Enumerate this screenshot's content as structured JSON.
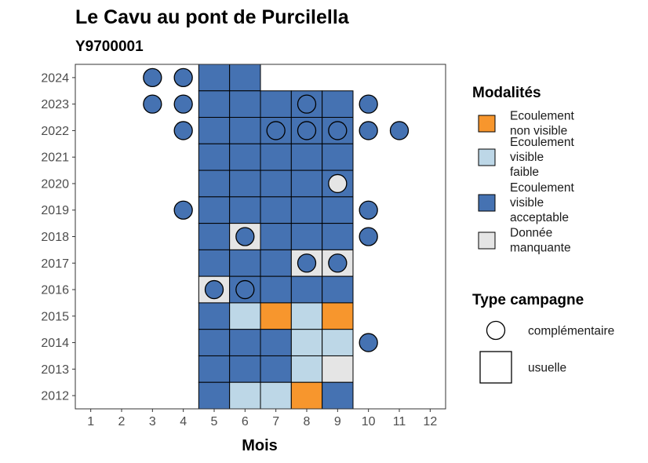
{
  "chart_data": {
    "type": "heatmap",
    "title": "Le Cavu au pont de Purcilella",
    "subtitle": "Y9700001",
    "xlabel": "Mois",
    "ylabel": "",
    "x_ticks": [
      1,
      2,
      3,
      4,
      5,
      6,
      7,
      8,
      9,
      10,
      11,
      12
    ],
    "y_ticks": [
      2012,
      2013,
      2014,
      2015,
      2016,
      2017,
      2018,
      2019,
      2020,
      2021,
      2022,
      2023,
      2024
    ],
    "xlim": [
      0.5,
      12.5
    ],
    "ylim": [
      2011.5,
      2024.5
    ],
    "grid": false,
    "legend_position": "right",
    "modalites": {
      "title": "Modalités",
      "entries": [
        {
          "key": "nv",
          "label_lines": [
            "Ecoulement",
            "non visible"
          ],
          "color": "#f7962d"
        },
        {
          "key": "vf",
          "label_lines": [
            "Ecoulement",
            "visible",
            "faible"
          ],
          "color": "#bdd7e7"
        },
        {
          "key": "va",
          "label_lines": [
            "Ecoulement",
            "visible",
            "acceptable"
          ],
          "color": "#4572b2"
        },
        {
          "key": "dm",
          "label_lines": [
            "Donnée",
            "manquante"
          ],
          "color": "#e5e5e5"
        }
      ]
    },
    "type_campagne": {
      "title": "Type campagne",
      "entries": [
        {
          "key": "complementaire",
          "label": "complémentaire",
          "shape": "circle"
        },
        {
          "key": "usuelle",
          "label": "usuelle",
          "shape": "square"
        }
      ]
    },
    "usuelle": [
      {
        "year": 2024,
        "month": 5,
        "m": "va"
      },
      {
        "year": 2024,
        "month": 6,
        "m": "va"
      },
      {
        "year": 2023,
        "month": 5,
        "m": "va"
      },
      {
        "year": 2023,
        "month": 6,
        "m": "va"
      },
      {
        "year": 2023,
        "month": 7,
        "m": "va"
      },
      {
        "year": 2023,
        "month": 8,
        "m": "va"
      },
      {
        "year": 2023,
        "month": 9,
        "m": "va"
      },
      {
        "year": 2022,
        "month": 5,
        "m": "va"
      },
      {
        "year": 2022,
        "month": 6,
        "m": "va"
      },
      {
        "year": 2022,
        "month": 7,
        "m": "va"
      },
      {
        "year": 2022,
        "month": 8,
        "m": "va"
      },
      {
        "year": 2022,
        "month": 9,
        "m": "va"
      },
      {
        "year": 2021,
        "month": 5,
        "m": "va"
      },
      {
        "year": 2021,
        "month": 6,
        "m": "va"
      },
      {
        "year": 2021,
        "month": 7,
        "m": "va"
      },
      {
        "year": 2021,
        "month": 8,
        "m": "va"
      },
      {
        "year": 2021,
        "month": 9,
        "m": "va"
      },
      {
        "year": 2020,
        "month": 5,
        "m": "va"
      },
      {
        "year": 2020,
        "month": 6,
        "m": "va"
      },
      {
        "year": 2020,
        "month": 7,
        "m": "va"
      },
      {
        "year": 2020,
        "month": 8,
        "m": "va"
      },
      {
        "year": 2020,
        "month": 9,
        "m": "va"
      },
      {
        "year": 2019,
        "month": 5,
        "m": "va"
      },
      {
        "year": 2019,
        "month": 6,
        "m": "va"
      },
      {
        "year": 2019,
        "month": 7,
        "m": "va"
      },
      {
        "year": 2019,
        "month": 8,
        "m": "va"
      },
      {
        "year": 2019,
        "month": 9,
        "m": "va"
      },
      {
        "year": 2018,
        "month": 5,
        "m": "va"
      },
      {
        "year": 2018,
        "month": 6,
        "m": "dm"
      },
      {
        "year": 2018,
        "month": 7,
        "m": "va"
      },
      {
        "year": 2018,
        "month": 8,
        "m": "va"
      },
      {
        "year": 2018,
        "month": 9,
        "m": "va"
      },
      {
        "year": 2017,
        "month": 5,
        "m": "va"
      },
      {
        "year": 2017,
        "month": 6,
        "m": "va"
      },
      {
        "year": 2017,
        "month": 7,
        "m": "va"
      },
      {
        "year": 2017,
        "month": 8,
        "m": "dm"
      },
      {
        "year": 2017,
        "month": 9,
        "m": "dm"
      },
      {
        "year": 2016,
        "month": 5,
        "m": "dm"
      },
      {
        "year": 2016,
        "month": 6,
        "m": "va"
      },
      {
        "year": 2016,
        "month": 7,
        "m": "va"
      },
      {
        "year": 2016,
        "month": 8,
        "m": "va"
      },
      {
        "year": 2016,
        "month": 9,
        "m": "va"
      },
      {
        "year": 2015,
        "month": 5,
        "m": "va"
      },
      {
        "year": 2015,
        "month": 6,
        "m": "vf"
      },
      {
        "year": 2015,
        "month": 7,
        "m": "nv"
      },
      {
        "year": 2015,
        "month": 8,
        "m": "vf"
      },
      {
        "year": 2015,
        "month": 9,
        "m": "nv"
      },
      {
        "year": 2014,
        "month": 5,
        "m": "va"
      },
      {
        "year": 2014,
        "month": 6,
        "m": "va"
      },
      {
        "year": 2014,
        "month": 7,
        "m": "va"
      },
      {
        "year": 2014,
        "month": 8,
        "m": "vf"
      },
      {
        "year": 2014,
        "month": 9,
        "m": "vf"
      },
      {
        "year": 2013,
        "month": 5,
        "m": "va"
      },
      {
        "year": 2013,
        "month": 6,
        "m": "va"
      },
      {
        "year": 2013,
        "month": 7,
        "m": "va"
      },
      {
        "year": 2013,
        "month": 8,
        "m": "vf"
      },
      {
        "year": 2013,
        "month": 9,
        "m": "dm"
      },
      {
        "year": 2012,
        "month": 5,
        "m": "va"
      },
      {
        "year": 2012,
        "month": 6,
        "m": "vf"
      },
      {
        "year": 2012,
        "month": 7,
        "m": "vf"
      },
      {
        "year": 2012,
        "month": 8,
        "m": "nv"
      },
      {
        "year": 2012,
        "month": 9,
        "m": "va"
      }
    ],
    "complementaire": [
      {
        "year": 2024,
        "month": 3,
        "m": "va"
      },
      {
        "year": 2024,
        "month": 4,
        "m": "va"
      },
      {
        "year": 2023,
        "month": 3,
        "m": "va"
      },
      {
        "year": 2023,
        "month": 4,
        "m": "va"
      },
      {
        "year": 2023,
        "month": 8,
        "m": "va"
      },
      {
        "year": 2023,
        "month": 10,
        "m": "va"
      },
      {
        "year": 2022,
        "month": 4,
        "m": "va"
      },
      {
        "year": 2022,
        "month": 7,
        "m": "va"
      },
      {
        "year": 2022,
        "month": 8,
        "m": "va"
      },
      {
        "year": 2022,
        "month": 9,
        "m": "va"
      },
      {
        "year": 2022,
        "month": 10,
        "m": "va"
      },
      {
        "year": 2022,
        "month": 11,
        "m": "va"
      },
      {
        "year": 2020,
        "month": 9,
        "m": "dm"
      },
      {
        "year": 2019,
        "month": 4,
        "m": "va"
      },
      {
        "year": 2019,
        "month": 10,
        "m": "va"
      },
      {
        "year": 2018,
        "month": 6,
        "m": "va"
      },
      {
        "year": 2018,
        "month": 10,
        "m": "va"
      },
      {
        "year": 2017,
        "month": 8,
        "m": "va"
      },
      {
        "year": 2017,
        "month": 9,
        "m": "va"
      },
      {
        "year": 2016,
        "month": 5,
        "m": "va"
      },
      {
        "year": 2016,
        "month": 6,
        "m": "va"
      },
      {
        "year": 2014,
        "month": 10,
        "m": "va"
      }
    ]
  }
}
